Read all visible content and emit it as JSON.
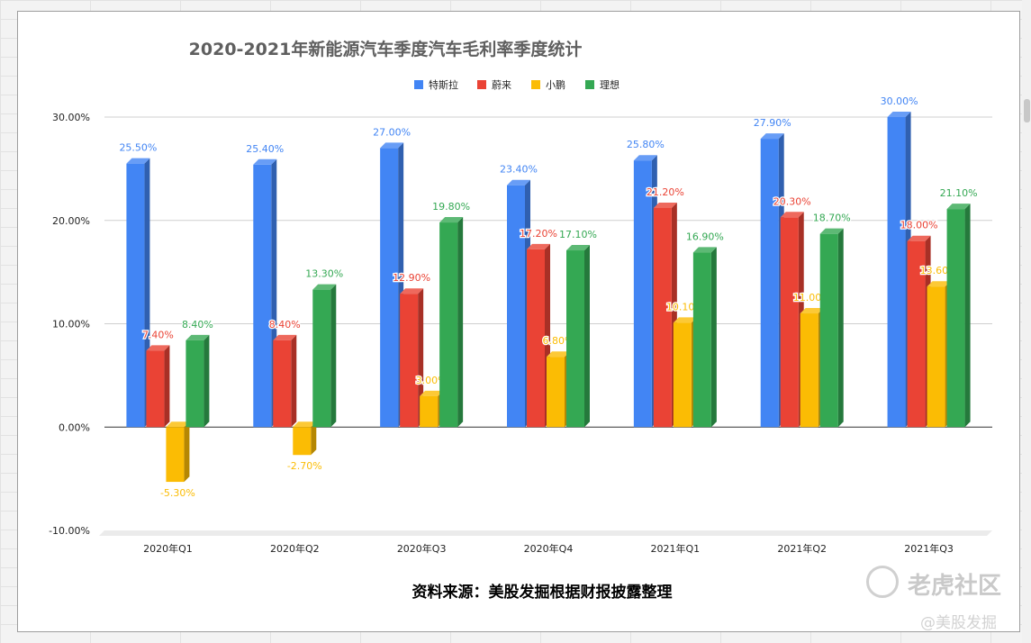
{
  "chart_data": {
    "type": "bar",
    "title": "2020-2021年新能源汽车季度汽车毛利率季度统计",
    "categories": [
      "2020年Q1",
      "2020年Q2",
      "2020年Q3",
      "2020年Q4",
      "2021年Q1",
      "2021年Q2",
      "2021年Q3"
    ],
    "series": [
      {
        "name": "特斯拉",
        "color": "#4285f4",
        "values": [
          25.5,
          25.4,
          27.0,
          23.4,
          25.8,
          27.9,
          30.0
        ],
        "labels": [
          "25.50%",
          "25.40%",
          "27.00%",
          "23.40%",
          "25.80%",
          "27.90%",
          "30.00%"
        ]
      },
      {
        "name": "蔚来",
        "color": "#ea4335",
        "values": [
          7.4,
          8.4,
          12.9,
          17.2,
          21.2,
          20.3,
          18.0
        ],
        "labels": [
          "7.40%",
          "8.40%",
          "12.90%",
          "17.20%",
          "21.20%",
          "20.30%",
          "18.00%"
        ]
      },
      {
        "name": "小鹏",
        "color": "#fbbc04",
        "values": [
          -5.3,
          -2.7,
          3.0,
          6.8,
          10.1,
          11.0,
          13.6
        ],
        "labels": [
          "-5.30%",
          "-2.70%",
          "3.00%",
          "6.80%",
          "10.10%",
          "11.00%",
          "13.60%"
        ]
      },
      {
        "name": "理想",
        "color": "#34a853",
        "values": [
          8.4,
          13.3,
          19.8,
          17.1,
          16.9,
          18.7,
          21.1
        ],
        "labels": [
          "8.40%",
          "13.30%",
          "19.80%",
          "17.10%",
          "16.90%",
          "18.70%",
          "21.10%"
        ]
      }
    ],
    "ylim": [
      -10,
      30
    ],
    "yticks": [
      "30.00%",
      "20.00%",
      "10.00%",
      "0.00%",
      "-10.00%"
    ],
    "ytick_values": [
      30,
      20,
      10,
      0,
      -10
    ],
    "legend_position": "top-center",
    "grid": true
  },
  "source_note": "资料来源：美股发掘根据财报披露整理",
  "watermark": {
    "brand": "老虎社区",
    "handle": "@美股发掘"
  }
}
